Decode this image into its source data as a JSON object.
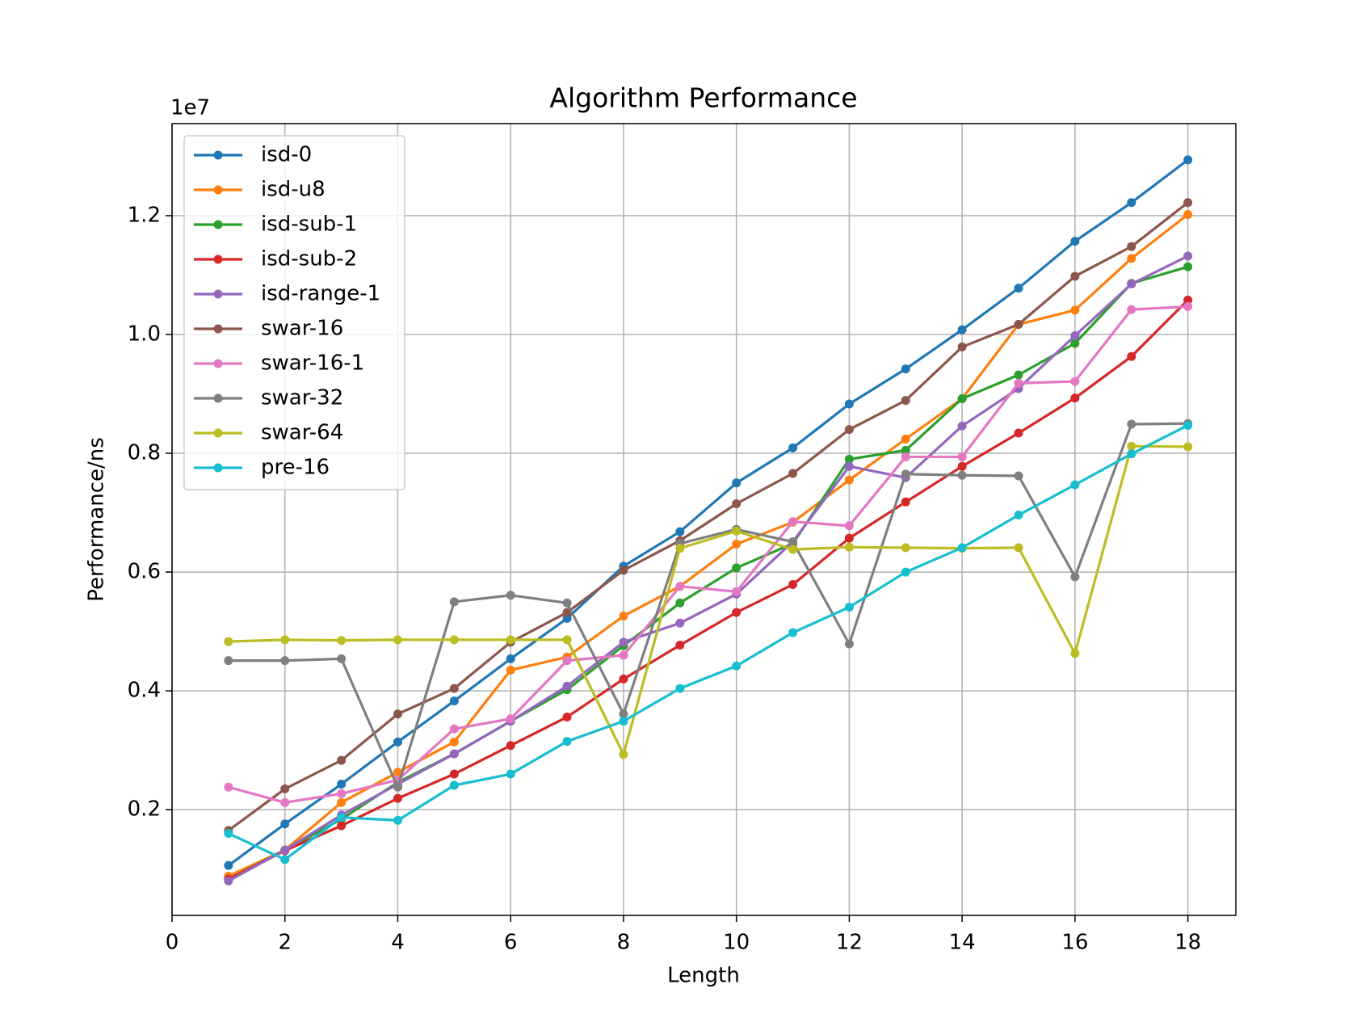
{
  "chart_data": {
    "type": "line",
    "title": "Algorithm Performance",
    "xlabel": "Length",
    "ylabel": "Performance/ns",
    "y_offset_label": "1e7",
    "x": [
      1,
      2,
      3,
      4,
      5,
      6,
      7,
      8,
      9,
      10,
      11,
      12,
      13,
      14,
      15,
      16,
      17,
      18
    ],
    "xlim": [
      0,
      18.85
    ],
    "xticks": [
      0,
      2,
      4,
      6,
      8,
      10,
      12,
      14,
      16,
      18
    ],
    "ylim": [
      0.022,
      1.355
    ],
    "yticks": [
      0.2,
      0.4,
      0.6,
      0.8,
      {
        "value": 1,
        "label": "1.0"
      },
      1.2
    ],
    "grid": true,
    "legend": "upper left",
    "series": [
      {
        "name": "isd-0",
        "color": "#1f77b4",
        "values": [
          0.106,
          0.176,
          0.243,
          0.314,
          0.383,
          0.454,
          0.522,
          0.61,
          0.668,
          0.75,
          0.809,
          0.883,
          0.942,
          1.008,
          1.078,
          1.157,
          1.222,
          1.294
        ]
      },
      {
        "name": "isd-u8",
        "color": "#ff7f0e",
        "values": [
          0.088,
          0.132,
          0.212,
          0.263,
          0.314,
          0.435,
          0.457,
          0.526,
          0.576,
          0.647,
          0.684,
          0.755,
          0.824,
          0.892,
          1.017,
          1.041,
          1.128,
          1.202
        ]
      },
      {
        "name": "isd-sub-1",
        "color": "#2ca02c",
        "values": [
          0.083,
          0.132,
          0.184,
          0.246,
          0.294,
          0.349,
          0.402,
          0.476,
          0.548,
          0.607,
          0.648,
          0.79,
          0.805,
          0.892,
          0.932,
          0.985,
          1.086,
          1.114
        ]
      },
      {
        "name": "isd-sub-2",
        "color": "#d62728",
        "values": [
          0.083,
          0.131,
          0.173,
          0.219,
          0.26,
          0.308,
          0.356,
          0.42,
          0.477,
          0.532,
          0.579,
          0.657,
          0.718,
          0.778,
          0.834,
          0.893,
          0.963,
          1.058
        ]
      },
      {
        "name": "isd-range-1",
        "color": "#9467bd",
        "values": [
          0.08,
          0.132,
          0.191,
          0.243,
          0.294,
          0.349,
          0.408,
          0.482,
          0.514,
          0.563,
          0.651,
          0.778,
          0.759,
          0.846,
          0.909,
          0.998,
          1.085,
          1.132
        ]
      },
      {
        "name": "swar-16",
        "color": "#8c564b",
        "values": [
          0.165,
          0.235,
          0.283,
          0.361,
          0.404,
          0.482,
          0.532,
          0.603,
          0.653,
          0.715,
          0.766,
          0.84,
          0.889,
          0.979,
          1.017,
          1.098,
          1.148,
          1.222
        ]
      },
      {
        "name": "swar-16-1",
        "color": "#e377c2",
        "values": [
          0.238,
          0.212,
          0.227,
          0.25,
          0.336,
          0.353,
          0.451,
          0.46,
          0.576,
          0.567,
          0.685,
          0.678,
          0.794,
          0.794,
          0.918,
          0.921,
          1.042,
          1.047
        ]
      },
      {
        "name": "swar-32",
        "color": "#7f7f7f",
        "values": [
          0.451,
          0.451,
          0.454,
          0.238,
          0.55,
          0.561,
          0.548,
          0.361,
          0.648,
          0.672,
          0.651,
          0.479,
          0.765,
          0.763,
          0.762,
          0.592,
          0.849,
          0.85
        ]
      },
      {
        "name": "swar-64",
        "color": "#bcbd22",
        "values": [
          0.483,
          0.486,
          0.485,
          0.486,
          0.486,
          0.486,
          0.486,
          0.293,
          0.64,
          0.669,
          0.638,
          0.642,
          0.641,
          0.64,
          0.641,
          0.463,
          0.812,
          0.811
        ]
      },
      {
        "name": "pre-16",
        "color": "#17becf",
        "values": [
          0.16,
          0.116,
          0.187,
          0.182,
          0.241,
          0.26,
          0.315,
          0.349,
          0.404,
          0.442,
          0.498,
          0.541,
          0.6,
          0.641,
          0.696,
          0.747,
          0.799,
          0.847
        ]
      }
    ]
  }
}
